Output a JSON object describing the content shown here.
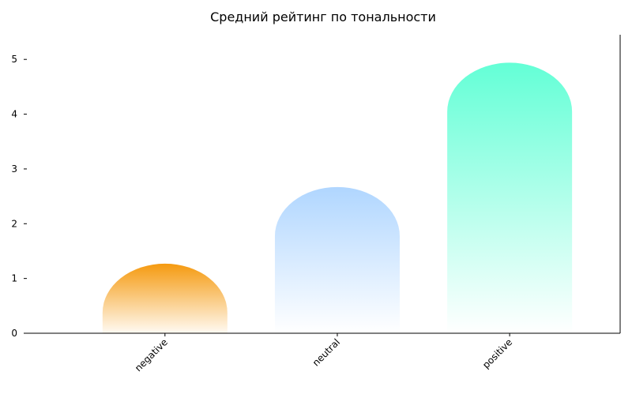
{
  "chart_data": {
    "type": "bar",
    "title": "Средний рейтинг по тональности",
    "xlabel": "",
    "ylabel": "",
    "categories": [
      "negative",
      "neutral",
      "positive"
    ],
    "values": [
      1.27,
      2.67,
      4.94
    ],
    "ylim": [
      0,
      5.45
    ],
    "yticks": [
      0,
      1,
      2,
      3,
      4,
      5
    ],
    "grid": false,
    "bar_colors": [
      {
        "top": "#f59a10",
        "bottom": "#fffaf3"
      },
      {
        "top": "#b0d6ff",
        "bottom": "#ffffff"
      },
      {
        "top": "#63ffd6",
        "bottom": "#ffffff"
      }
    ]
  }
}
